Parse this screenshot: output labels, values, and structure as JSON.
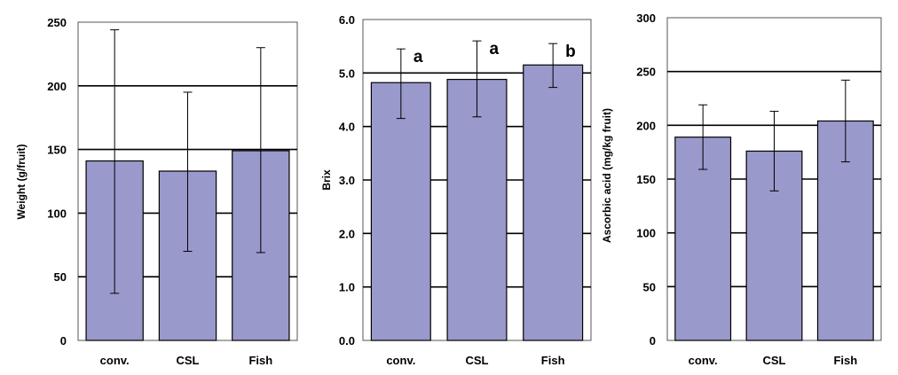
{
  "chart_data": [
    {
      "type": "bar",
      "categories": [
        "conv.",
        "CSL",
        "Fish"
      ],
      "values": [
        141,
        133,
        149
      ],
      "error_low": [
        37,
        70,
        69
      ],
      "error_high": [
        244,
        195,
        230
      ],
      "ylim": [
        0,
        250
      ],
      "yticks": [
        "0",
        "50",
        "100",
        "150",
        "200",
        "250"
      ],
      "ylabel": "Weight (g/fruit)",
      "xlabel": "",
      "title": "",
      "grid": true,
      "annotations": [],
      "bar_color": "#9999cc"
    },
    {
      "type": "bar",
      "categories": [
        "conv.",
        "CSL",
        "Fish"
      ],
      "values": [
        4.82,
        4.88,
        5.15
      ],
      "error_low": [
        4.15,
        4.18,
        4.73
      ],
      "error_high": [
        5.45,
        5.6,
        5.55
      ],
      "ylim": [
        0,
        6
      ],
      "yticks": [
        "0.0",
        "1.0",
        "2.0",
        "3.0",
        "4.0",
        "5.0",
        "6.0"
      ],
      "ylabel": "Brix",
      "xlabel": "",
      "title": "",
      "grid": true,
      "annotations": [
        "a",
        "a",
        "b"
      ],
      "bar_color": "#9999cc"
    },
    {
      "type": "bar",
      "categories": [
        "conv.",
        "CSL",
        "Fish"
      ],
      "values": [
        189,
        176,
        204
      ],
      "error_low": [
        159,
        139,
        166
      ],
      "error_high": [
        219,
        213,
        242
      ],
      "ylim": [
        0,
        300
      ],
      "yticks": [
        "0",
        "50",
        "100",
        "150",
        "200",
        "250",
        "300"
      ],
      "ylabel": "Ascorbic acid (mg/kg fruit)",
      "xlabel": "",
      "title": "",
      "grid": true,
      "annotations": [],
      "bar_color": "#9999cc"
    }
  ]
}
